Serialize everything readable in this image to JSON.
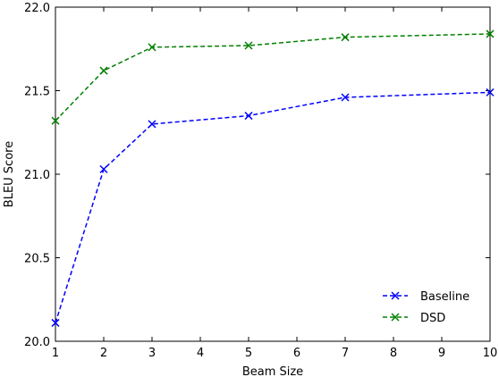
{
  "chart_data": {
    "type": "line",
    "title": "",
    "xlabel": "Beam Size",
    "ylabel": "BLEU Score",
    "xlim": [
      1,
      10
    ],
    "ylim": [
      20.0,
      22.0
    ],
    "xticks": [
      "1",
      "2",
      "3",
      "4",
      "5",
      "6",
      "7",
      "8",
      "9",
      "10"
    ],
    "yticks": [
      "20.0",
      "20.5",
      "21.0",
      "21.5",
      "22.0"
    ],
    "grid": false,
    "legend_position": "bottom-right",
    "series": [
      {
        "name": "Baseline",
        "color": "#0000ff",
        "marker": "x",
        "linestyle": "dashed",
        "x": [
          1,
          2,
          3,
          5,
          7,
          10
        ],
        "y": [
          20.11,
          21.03,
          21.3,
          21.35,
          21.46,
          21.49
        ]
      },
      {
        "name": "DSD",
        "color": "#008000",
        "marker": "x",
        "linestyle": "dashed",
        "x": [
          1,
          2,
          3,
          5,
          7,
          10
        ],
        "y": [
          21.32,
          21.62,
          21.76,
          21.77,
          21.82,
          21.84
        ]
      }
    ]
  }
}
